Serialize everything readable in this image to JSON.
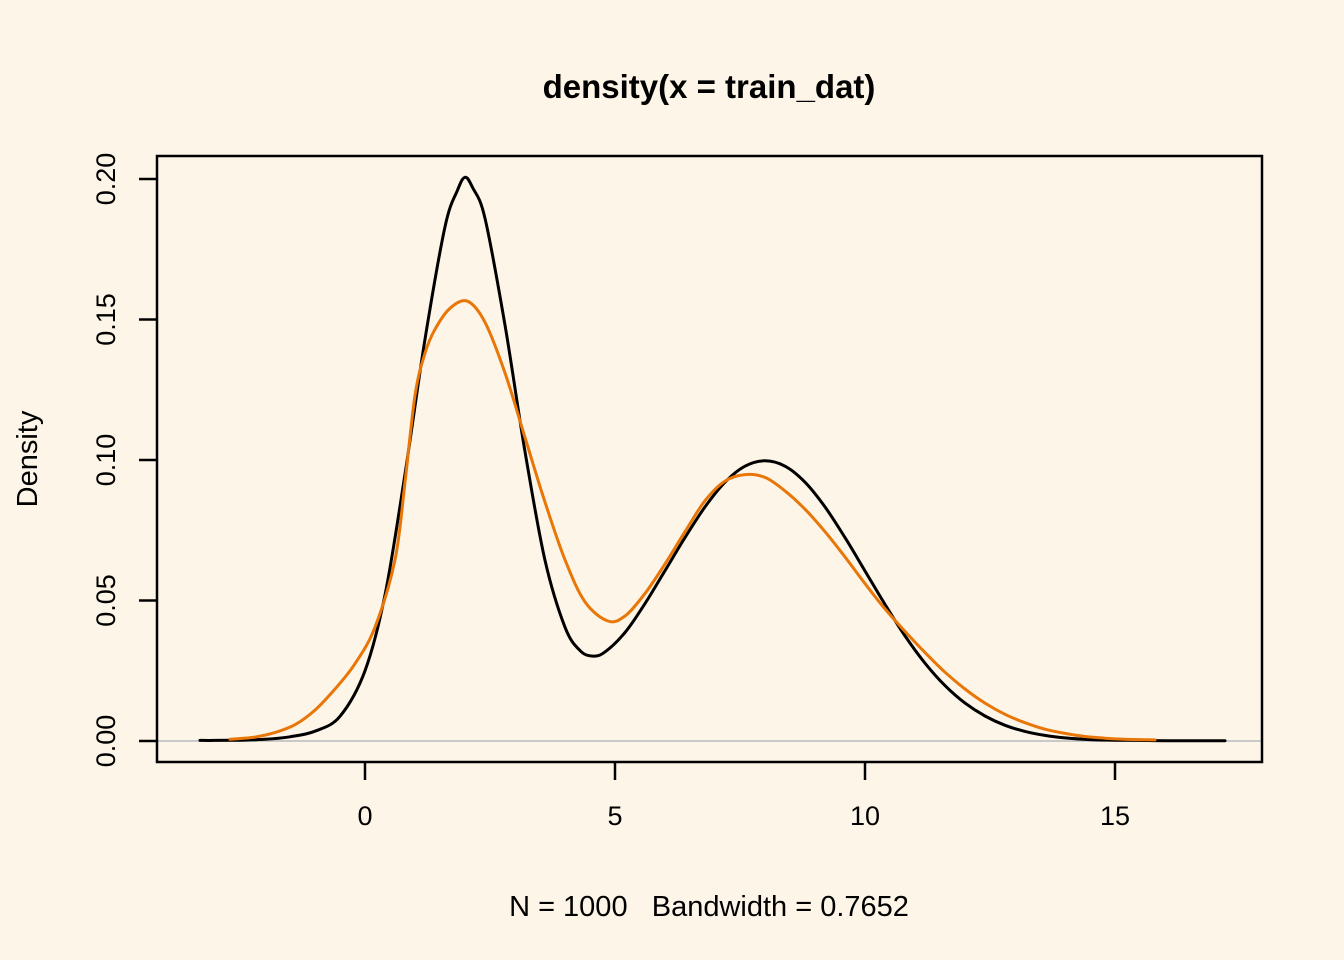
{
  "chart_data": {
    "type": "line",
    "title": "density(x = train_dat)",
    "xlabel": "N = 1000   Bandwidth = 0.7652",
    "ylabel": "Density",
    "xlim": [
      -4.16,
      17.94
    ],
    "ylim": [
      -0.0075,
      0.208
    ],
    "x_ticks": [
      0,
      5,
      10,
      15
    ],
    "x_tick_labels": [
      "0",
      "5",
      "10",
      "15"
    ],
    "y_ticks": [
      0,
      0.05,
      0.1,
      0.15,
      0.2
    ],
    "y_tick_labels": [
      "0.00",
      "0.05",
      "0.10",
      "0.15",
      "0.20"
    ],
    "grid": false,
    "legend": "none",
    "reference_line_y": 0,
    "colors": {
      "background": "#FDF6E8",
      "axis": "#000000",
      "zero_line": "#C9C9C9",
      "black_curve": "#000000",
      "orange_curve": "#E87608"
    },
    "series": [
      {
        "name": "black-density-curve",
        "color": "#000000",
        "points": [
          [
            -3.3,
            0.0002
          ],
          [
            -3.0,
            0.0002
          ],
          [
            -2.5,
            0.0003
          ],
          [
            -2.0,
            0.0006
          ],
          [
            -1.5,
            0.0015
          ],
          [
            -1.0,
            0.0035
          ],
          [
            -0.5,
            0.0088
          ],
          [
            0.0,
            0.025
          ],
          [
            0.4,
            0.052
          ],
          [
            0.8,
            0.095
          ],
          [
            1.2,
            0.143
          ],
          [
            1.6,
            0.183
          ],
          [
            1.85,
            0.196
          ],
          [
            2.0,
            0.2006
          ],
          [
            2.15,
            0.197
          ],
          [
            2.4,
            0.186
          ],
          [
            2.8,
            0.148
          ],
          [
            3.2,
            0.103
          ],
          [
            3.6,
            0.0643
          ],
          [
            4.0,
            0.0405
          ],
          [
            4.3,
            0.0322
          ],
          [
            4.55,
            0.0302
          ],
          [
            4.8,
            0.0317
          ],
          [
            5.2,
            0.0386
          ],
          [
            5.6,
            0.0489
          ],
          [
            6.0,
            0.0606
          ],
          [
            6.4,
            0.0724
          ],
          [
            6.8,
            0.0833
          ],
          [
            7.2,
            0.0921
          ],
          [
            7.6,
            0.0978
          ],
          [
            8.0,
            0.0997
          ],
          [
            8.4,
            0.0978
          ],
          [
            8.8,
            0.0921
          ],
          [
            9.2,
            0.0833
          ],
          [
            9.6,
            0.0724
          ],
          [
            10.0,
            0.0605
          ],
          [
            10.4,
            0.0486
          ],
          [
            10.8,
            0.0374
          ],
          [
            11.2,
            0.0277
          ],
          [
            11.6,
            0.0197
          ],
          [
            12.0,
            0.0135
          ],
          [
            12.4,
            0.0089
          ],
          [
            12.8,
            0.0056
          ],
          [
            13.2,
            0.0034
          ],
          [
            13.6,
            0.002
          ],
          [
            14.0,
            0.0011
          ],
          [
            14.5,
            0.0005
          ],
          [
            15.0,
            0.0003
          ],
          [
            15.5,
            0.0002
          ],
          [
            16.0,
            0.0001
          ],
          [
            16.6,
            0.0001
          ],
          [
            17.2,
            0.0001
          ]
        ]
      },
      {
        "name": "orange-density-curve",
        "color": "#E87608",
        "points": [
          [
            -2.7,
            0.0006
          ],
          [
            -2.2,
            0.0014
          ],
          [
            -1.8,
            0.003
          ],
          [
            -1.4,
            0.0058
          ],
          [
            -1.0,
            0.011
          ],
          [
            -0.6,
            0.0185
          ],
          [
            -0.2,
            0.0275
          ],
          [
            0.2,
            0.0405
          ],
          [
            0.6,
            0.0645
          ],
          [
            0.8,
            0.092
          ],
          [
            1.0,
            0.123
          ],
          [
            1.2,
            0.138
          ],
          [
            1.4,
            0.1465
          ],
          [
            1.7,
            0.154
          ],
          [
            2.05,
            0.1565
          ],
          [
            2.4,
            0.149
          ],
          [
            2.8,
            0.131
          ],
          [
            3.2,
            0.108
          ],
          [
            3.6,
            0.085
          ],
          [
            4.0,
            0.0645
          ],
          [
            4.4,
            0.0495
          ],
          [
            4.86,
            0.0427
          ],
          [
            5.2,
            0.0445
          ],
          [
            5.6,
            0.0525
          ],
          [
            6.0,
            0.063
          ],
          [
            6.4,
            0.0745
          ],
          [
            6.8,
            0.0855
          ],
          [
            7.2,
            0.0925
          ],
          [
            7.6,
            0.0948
          ],
          [
            8.0,
            0.0938
          ],
          [
            8.4,
            0.089
          ],
          [
            8.8,
            0.0825
          ],
          [
            9.2,
            0.0745
          ],
          [
            9.6,
            0.0655
          ],
          [
            10.0,
            0.056
          ],
          [
            10.4,
            0.047
          ],
          [
            10.8,
            0.039
          ],
          [
            11.2,
            0.0315
          ],
          [
            11.6,
            0.0245
          ],
          [
            12.0,
            0.0185
          ],
          [
            12.4,
            0.0135
          ],
          [
            12.8,
            0.0095
          ],
          [
            13.2,
            0.0065
          ],
          [
            13.6,
            0.0042
          ],
          [
            14.0,
            0.0027
          ],
          [
            14.4,
            0.0016
          ],
          [
            14.8,
            0.001
          ],
          [
            15.2,
            0.0006
          ],
          [
            15.8,
            0.0004
          ]
        ]
      }
    ]
  }
}
